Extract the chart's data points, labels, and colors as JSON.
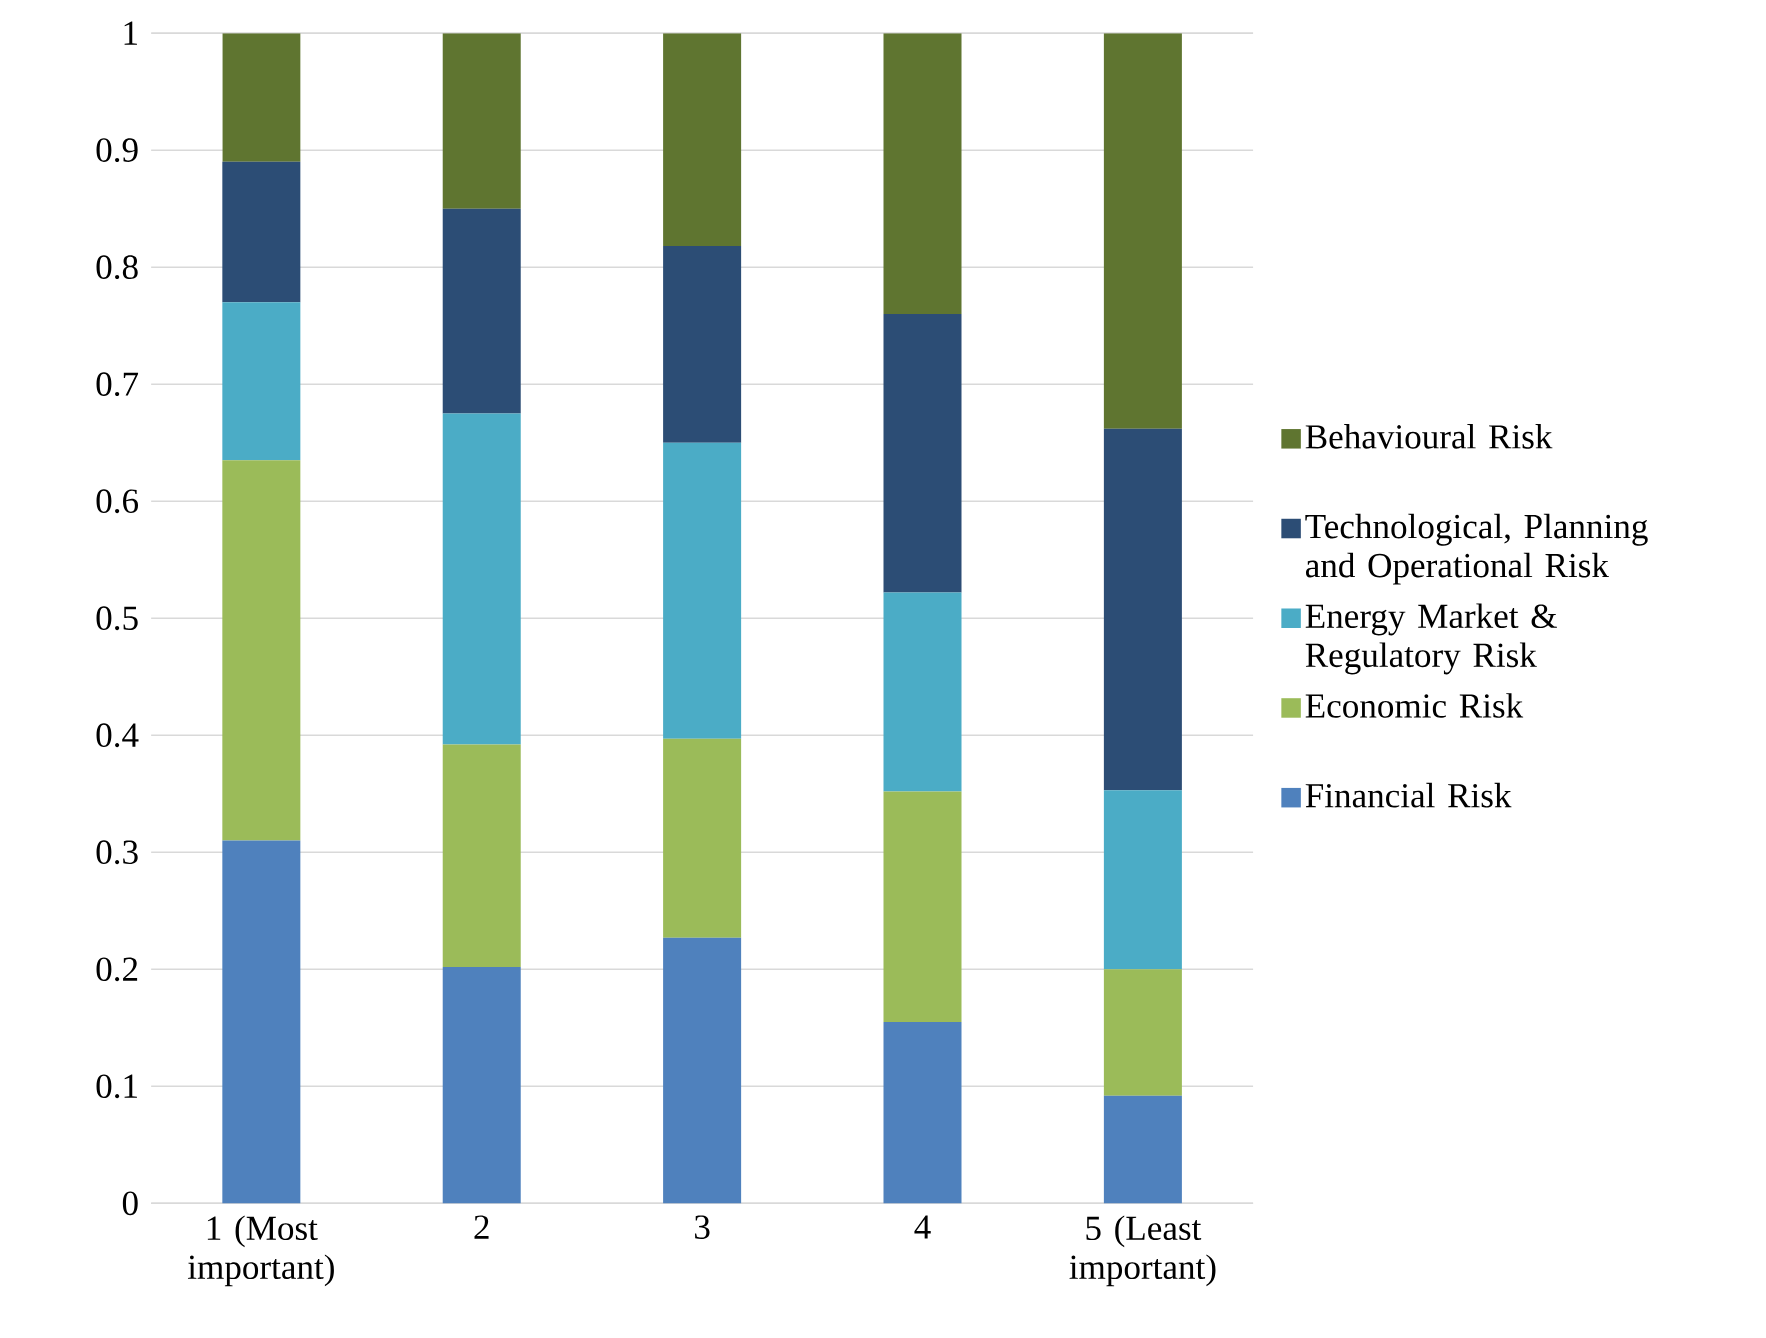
{
  "chart_data": {
    "type": "bar",
    "stacked": true,
    "categories": [
      "1 (Most important)",
      "2",
      "3",
      "4",
      "5 (Least important)"
    ],
    "series": [
      {
        "name": "Financial Risk",
        "color": "#4f81bd",
        "values": [
          0.31,
          0.202,
          0.227,
          0.155,
          0.092
        ]
      },
      {
        "name": "Economic Risk",
        "color": "#9bbb59",
        "values": [
          0.325,
          0.19,
          0.17,
          0.197,
          0.108
        ]
      },
      {
        "name": "Energy Market & Regulatory Risk",
        "color": "#4bacc6",
        "values": [
          0.135,
          0.283,
          0.253,
          0.17,
          0.153
        ]
      },
      {
        "name": "Technological, Planning and Operational Risk",
        "color": "#2c4d75",
        "values": [
          0.12,
          0.175,
          0.168,
          0.238,
          0.309
        ]
      },
      {
        "name": "Behavioural Risk",
        "color": "#5f7530",
        "values": [
          0.11,
          0.15,
          0.182,
          0.24,
          0.338
        ]
      }
    ],
    "ylim": [
      0,
      1
    ],
    "yticks": [
      0,
      {
        "value": 0.1,
        "label": "0.1"
      },
      {
        "value": 0.2,
        "label": "0.2"
      },
      {
        "value": 0.3,
        "label": "0.3"
      },
      {
        "value": 0.4,
        "label": "0.4"
      },
      {
        "value": 0.5,
        "label": "0.5"
      },
      {
        "value": 0.6,
        "label": "0.6"
      },
      {
        "value": 0.7,
        "label": "0.7"
      },
      {
        "value": 0.8,
        "label": "0.8"
      },
      {
        "value": 0.9,
        "label": "0.9"
      },
      1
    ],
    "grid": "y",
    "legend": "right"
  }
}
